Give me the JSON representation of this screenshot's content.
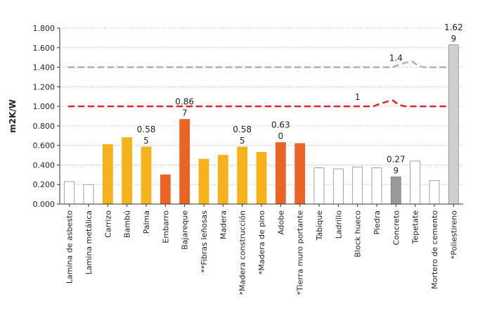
{
  "chart_data": {
    "type": "bar",
    "title": "",
    "xlabel": "",
    "ylabel": "m2K/W",
    "ylim": [
      0,
      1.8
    ],
    "y_ticks": [
      "0.000",
      "0.200",
      "0.400",
      "0.600",
      "0.800",
      "1.000",
      "1.200",
      "1.400",
      "1.600",
      "1.800"
    ],
    "y_tick_values": [
      0,
      0.2,
      0.4,
      0.6,
      0.8,
      1.0,
      1.2,
      1.4,
      1.6,
      1.8
    ],
    "grid": true,
    "categories": [
      "Lamina de asbesto",
      "Lamina metálica",
      "Carrizo",
      "Bambú",
      "Palma",
      "Embarro",
      "Bajareque",
      "**Fibras leñosas",
      "Madera",
      "*Madera construcción",
      "*Madera de pino",
      "Adobe",
      "*Tierra muro portante",
      "Tabique",
      "Ladrillo",
      "Block hueco",
      "Piedra",
      "Concreto",
      "Tepetate",
      "Mortero de cemento",
      "*Poliestireno"
    ],
    "values": [
      0.23,
      0.2,
      0.61,
      0.68,
      0.585,
      0.3,
      0.867,
      0.46,
      0.5,
      0.585,
      0.53,
      0.63,
      0.62,
      0.37,
      0.36,
      0.38,
      0.37,
      0.279,
      0.44,
      0.24,
      1.629
    ],
    "bar_styles": [
      "outline",
      "outline",
      "yellow",
      "yellow",
      "yellow",
      "orange",
      "orange",
      "yellow",
      "yellow",
      "yellow",
      "yellow",
      "orange",
      "orange",
      "outline",
      "outline",
      "outline",
      "outline",
      "gray",
      "outline",
      "outline",
      "lightgray"
    ],
    "bar_label_lines": [
      {
        "index": 4,
        "lines": [
          "0.58",
          "5"
        ]
      },
      {
        "index": 6,
        "lines": [
          "0.86",
          "7"
        ]
      },
      {
        "index": 9,
        "lines": [
          "0.58",
          "5"
        ]
      },
      {
        "index": 11,
        "lines": [
          "0.63",
          "0"
        ]
      },
      {
        "index": 17,
        "lines": [
          "0.27",
          "9"
        ]
      },
      {
        "index": 20,
        "lines": [
          "1.62",
          "9"
        ]
      }
    ],
    "reference_lines": [
      {
        "name": "Reference 1.4",
        "label": "1.4",
        "value": 1.4,
        "color": "#b0b0b0",
        "label_index": 17,
        "bump_index": 18,
        "bump_value": 1.46
      },
      {
        "name": "Reference 1",
        "label": "1",
        "value": 1.0,
        "color": "#e8202a",
        "label_index": 15,
        "bump_index": 17,
        "bump_value": 1.06
      }
    ],
    "colors": {
      "yellow": "#f5b21b",
      "orange": "#ea6425",
      "gray": "#9a9a9a",
      "lightgray": "#cfcfcf",
      "outline_stroke": "#8a8a8a",
      "axis": "#333333"
    }
  }
}
